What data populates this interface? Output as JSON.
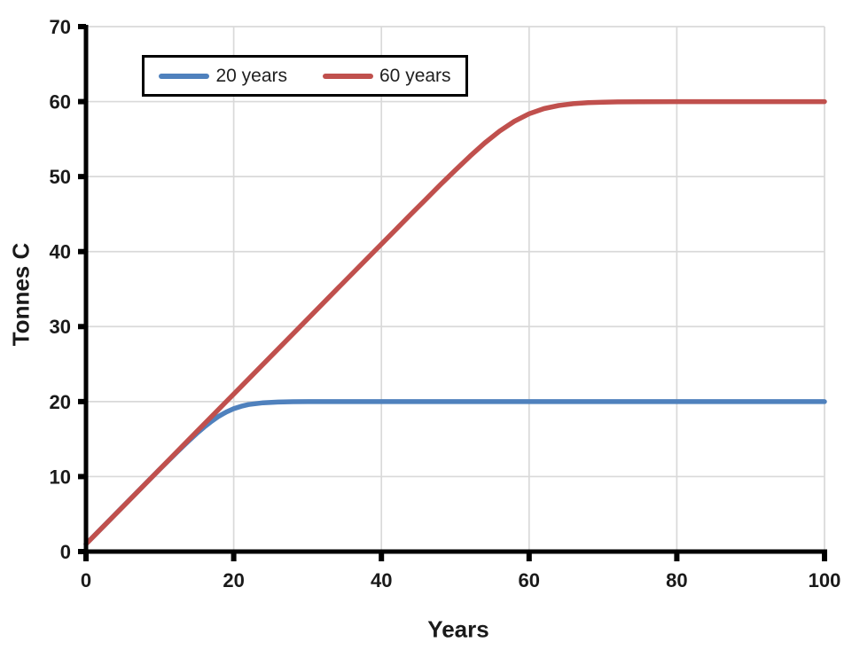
{
  "figure": {
    "background": "#ffffff"
  },
  "chart_data": {
    "type": "line",
    "title": "",
    "xlabel": "Years",
    "ylabel": "Tonnes C",
    "xlim": [
      0,
      100
    ],
    "ylim": [
      0,
      70
    ],
    "xticks": [
      0,
      20,
      40,
      60,
      80,
      100
    ],
    "yticks": [
      0,
      10,
      20,
      30,
      40,
      50,
      60,
      70
    ],
    "grid": true,
    "gridline_color": "#d9d9d9",
    "axis_color": "#000000",
    "tick_label_color": "#1a1a1a",
    "legend": {
      "position": "top-left-inside",
      "border_color": "#000000",
      "background": "#ffffff"
    },
    "series": [
      {
        "name": "20 years",
        "color": "#4f81bd",
        "points": [
          [
            0,
            1
          ],
          [
            2,
            3
          ],
          [
            4,
            5
          ],
          [
            6,
            7
          ],
          [
            8,
            9
          ],
          [
            10,
            10.98
          ],
          [
            12,
            12.94
          ],
          [
            13,
            13.9
          ],
          [
            14,
            14.84
          ],
          [
            15,
            15.75
          ],
          [
            16,
            16.6
          ],
          [
            17,
            17.37
          ],
          [
            18,
            18.05
          ],
          [
            19,
            18.61
          ],
          [
            20,
            19.05
          ],
          [
            21,
            19.37
          ],
          [
            22,
            19.6
          ],
          [
            24,
            19.84
          ],
          [
            26,
            19.94
          ],
          [
            28,
            19.98
          ],
          [
            30,
            19.99
          ],
          [
            35,
            20
          ],
          [
            40,
            20
          ],
          [
            50,
            20
          ],
          [
            60,
            20
          ],
          [
            70,
            20
          ],
          [
            80,
            20
          ],
          [
            90,
            20
          ],
          [
            100,
            20
          ]
        ]
      },
      {
        "name": "60 years",
        "color": "#c0504d",
        "points": [
          [
            0,
            1
          ],
          [
            5,
            6
          ],
          [
            10,
            11
          ],
          [
            15,
            16
          ],
          [
            20,
            21
          ],
          [
            25,
            26
          ],
          [
            30,
            31
          ],
          [
            35,
            36
          ],
          [
            40,
            41
          ],
          [
            42,
            42.99
          ],
          [
            44,
            44.98
          ],
          [
            46,
            46.96
          ],
          [
            48,
            48.93
          ],
          [
            50,
            50.85
          ],
          [
            52,
            52.72
          ],
          [
            54,
            54.49
          ],
          [
            56,
            56.06
          ],
          [
            58,
            57.37
          ],
          [
            60,
            58.38
          ],
          [
            62,
            59.06
          ],
          [
            64,
            59.48
          ],
          [
            66,
            59.72
          ],
          [
            68,
            59.85
          ],
          [
            70,
            59.93
          ],
          [
            72,
            59.96
          ],
          [
            75,
            59.99
          ],
          [
            80,
            60
          ],
          [
            85,
            60
          ],
          [
            90,
            60
          ],
          [
            95,
            60
          ],
          [
            100,
            60
          ]
        ]
      }
    ]
  }
}
